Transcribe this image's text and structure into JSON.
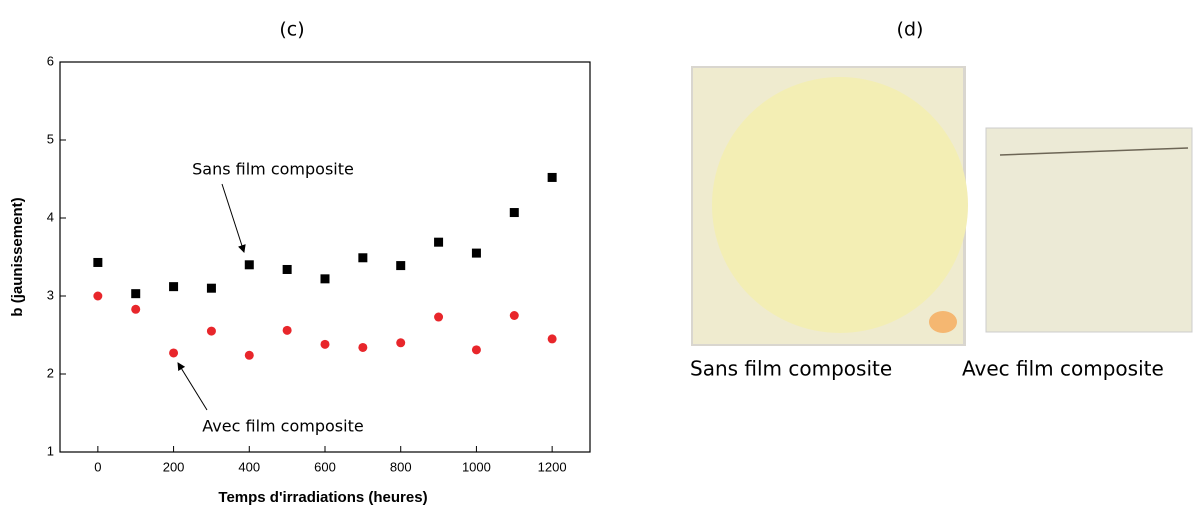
{
  "chart_data": {
    "type": "scatter",
    "title": "(c)",
    "xlabel": "Temps d'irradiations (heures)",
    "ylabel": "b (jaunissement)",
    "x": [
      0,
      100,
      200,
      300,
      400,
      500,
      600,
      700,
      800,
      900,
      1000,
      1100,
      1200
    ],
    "series": [
      {
        "color": "#000000",
        "marker": "square",
        "values": [
          3.43,
          3.03,
          3.12,
          3.1,
          3.4,
          3.34,
          3.22,
          3.49,
          3.39,
          3.69,
          3.55,
          4.07,
          4.52
        ]
      },
      {
        "color": "#e8262b",
        "marker": "circle",
        "values": [
          3.0,
          2.83,
          2.27,
          2.55,
          2.24,
          2.56,
          2.38,
          2.34,
          2.4,
          2.73,
          2.31,
          2.75,
          2.45
        ]
      }
    ],
    "annotations": [
      "Sans film composite",
      "Avec film composite"
    ],
    "xlim": [
      -100,
      1300
    ],
    "xticks": [
      0,
      200,
      400,
      600,
      800,
      1000,
      1200
    ],
    "ylim": [
      1,
      6
    ],
    "yticks": [
      1,
      2,
      3,
      4,
      5,
      6
    ],
    "grid": false
  },
  "photo": {
    "label": "(d)",
    "captions": [
      "Sans film composite",
      "Avec film composite"
    ]
  }
}
